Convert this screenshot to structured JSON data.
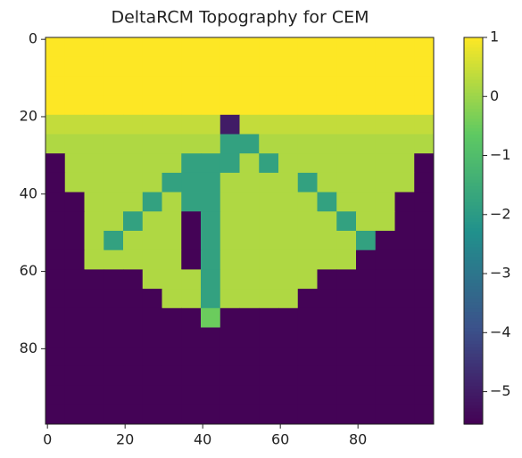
{
  "chart_data": {
    "type": "heatmap",
    "title": "DeltaRCM Topography for CEM",
    "colormap": "viridis",
    "xlim": [
      -0.5,
      99.5
    ],
    "ylim": [
      99.5,
      -0.5
    ],
    "xticks": [
      0,
      20,
      40,
      60,
      80
    ],
    "yticks": [
      0,
      20,
      40,
      60,
      80
    ],
    "clim": [
      -5.55,
      1
    ],
    "cticks": [
      1,
      0,
      {
        "value": -1,
        "label": "−1"
      },
      {
        "value": -2,
        "label": "−2"
      },
      {
        "value": -3,
        "label": "−3"
      },
      {
        "value": -4,
        "label": "−4"
      },
      {
        "value": -5,
        "label": "−5"
      }
    ],
    "z": [
      [
        1,
        1,
        1,
        1,
        1,
        1,
        1,
        1,
        1,
        1,
        1,
        1,
        1,
        1,
        1,
        1,
        1,
        1,
        1,
        1
      ],
      [
        1,
        1,
        1,
        1,
        1,
        1,
        1,
        1,
        1,
        1,
        1,
        1,
        1,
        1,
        1,
        1,
        1,
        1,
        1,
        1
      ],
      [
        1,
        1,
        1,
        1,
        1,
        1,
        1,
        1,
        1,
        1,
        1,
        1,
        1,
        1,
        1,
        1,
        1,
        1,
        1,
        1
      ],
      [
        1,
        1,
        1,
        1,
        1,
        1,
        1,
        1,
        1,
        1,
        1,
        1,
        1,
        1,
        1,
        1,
        1,
        1,
        1,
        1
      ],
      [
        0.4,
        0.4,
        0.4,
        0.4,
        0.4,
        0.4,
        0.4,
        0.4,
        0.4,
        -5,
        0.4,
        0.4,
        0.4,
        0.4,
        0.4,
        0.4,
        0.4,
        0.4,
        0.4,
        0.4
      ],
      [
        0.2,
        0.2,
        0.2,
        0.2,
        0.2,
        0.2,
        0.2,
        0.2,
        0.2,
        -1.8,
        -1.8,
        0.2,
        0.2,
        0.2,
        0.2,
        0.2,
        0.2,
        0.2,
        0.2,
        0.2
      ],
      [
        -5.5,
        0.2,
        0.2,
        0.2,
        0.2,
        0.2,
        0.2,
        -1.8,
        -1.8,
        -1.8,
        0.2,
        -1.8,
        0.2,
        0.2,
        0.2,
        0.2,
        0.2,
        0.2,
        0.2,
        -5.5
      ],
      [
        -5.5,
        0.2,
        0.2,
        0.2,
        0.2,
        0.2,
        -1.8,
        -1.8,
        -1.8,
        0.2,
        0.2,
        0.2,
        0.2,
        -1.8,
        0.2,
        0.2,
        0.2,
        0.2,
        0.2,
        -5.5
      ],
      [
        -5.5,
        -5.5,
        0.2,
        0.2,
        0.2,
        -1.8,
        0.2,
        -1.8,
        -1.8,
        0.2,
        0.2,
        0.2,
        0.2,
        0.2,
        -1.8,
        0.2,
        0.2,
        0.2,
        -5.5,
        -5.5
      ],
      [
        -5.5,
        -5.5,
        0.2,
        0.2,
        -1.8,
        0.2,
        0.2,
        -5.5,
        -1.8,
        0.2,
        0.2,
        0.2,
        0.2,
        0.2,
        0.2,
        -1.8,
        0.2,
        0.2,
        -5.5,
        -5.5
      ],
      [
        -5.5,
        -5.5,
        0.2,
        -1.8,
        0.2,
        0.2,
        0.2,
        -5.5,
        -1.8,
        0.2,
        0.2,
        0.2,
        0.2,
        0.2,
        0.2,
        0.2,
        -1.8,
        -5.5,
        -5.5,
        -5.5
      ],
      [
        -5.5,
        -5.5,
        0.2,
        0.2,
        0.2,
        0.2,
        0.2,
        -5.5,
        -1.8,
        0.2,
        0.2,
        0.2,
        0.2,
        0.2,
        0.2,
        0.2,
        -5.5,
        -5.5,
        -5.5,
        -5.5
      ],
      [
        -5.5,
        -5.5,
        -5.5,
        -5.5,
        -5.5,
        0.2,
        0.2,
        0.2,
        -1.8,
        0.2,
        0.2,
        0.2,
        0.2,
        0.2,
        -5.5,
        -5.5,
        -5.5,
        -5.5,
        -5.5,
        -5.5
      ],
      [
        -5.5,
        -5.5,
        -5.5,
        -5.5,
        -5.5,
        -5.5,
        0.2,
        0.2,
        -1.8,
        0.2,
        0.2,
        0.2,
        0.2,
        -5.5,
        -5.5,
        -5.5,
        -5.5,
        -5.5,
        -5.5,
        -5.5
      ],
      [
        -5.5,
        -5.5,
        -5.5,
        -5.5,
        -5.5,
        -5.5,
        -5.5,
        -5.5,
        -0.5,
        -5.5,
        -5.5,
        -5.5,
        -5.5,
        -5.5,
        -5.5,
        -5.5,
        -5.5,
        -5.5,
        -5.5,
        -5.5
      ],
      [
        -5.5,
        -5.5,
        -5.5,
        -5.5,
        -5.5,
        -5.5,
        -5.5,
        -5.5,
        -5.5,
        -5.5,
        -5.5,
        -5.5,
        -5.5,
        -5.5,
        -5.5,
        -5.5,
        -5.5,
        -5.5,
        -5.5,
        -5.5
      ],
      [
        -5.5,
        -5.5,
        -5.5,
        -5.5,
        -5.5,
        -5.5,
        -5.5,
        -5.5,
        -5.5,
        -5.5,
        -5.5,
        -5.5,
        -5.5,
        -5.5,
        -5.5,
        -5.5,
        -5.5,
        -5.5,
        -5.5,
        -5.5
      ],
      [
        -5.5,
        -5.5,
        -5.5,
        -5.5,
        -5.5,
        -5.5,
        -5.5,
        -5.5,
        -5.5,
        -5.5,
        -5.5,
        -5.5,
        -5.5,
        -5.5,
        -5.5,
        -5.5,
        -5.5,
        -5.5,
        -5.5,
        -5.5
      ],
      [
        -5.5,
        -5.5,
        -5.5,
        -5.5,
        -5.5,
        -5.5,
        -5.5,
        -5.5,
        -5.5,
        -5.5,
        -5.5,
        -5.5,
        -5.5,
        -5.5,
        -5.5,
        -5.5,
        -5.5,
        -5.5,
        -5.5,
        -5.5
      ],
      [
        -5.5,
        -5.5,
        -5.5,
        -5.5,
        -5.5,
        -5.5,
        -5.5,
        -5.5,
        -5.5,
        -5.5,
        -5.5,
        -5.5,
        -5.5,
        -5.5,
        -5.5,
        -5.5,
        -5.5,
        -5.5,
        -5.5,
        -5.5
      ]
    ]
  }
}
